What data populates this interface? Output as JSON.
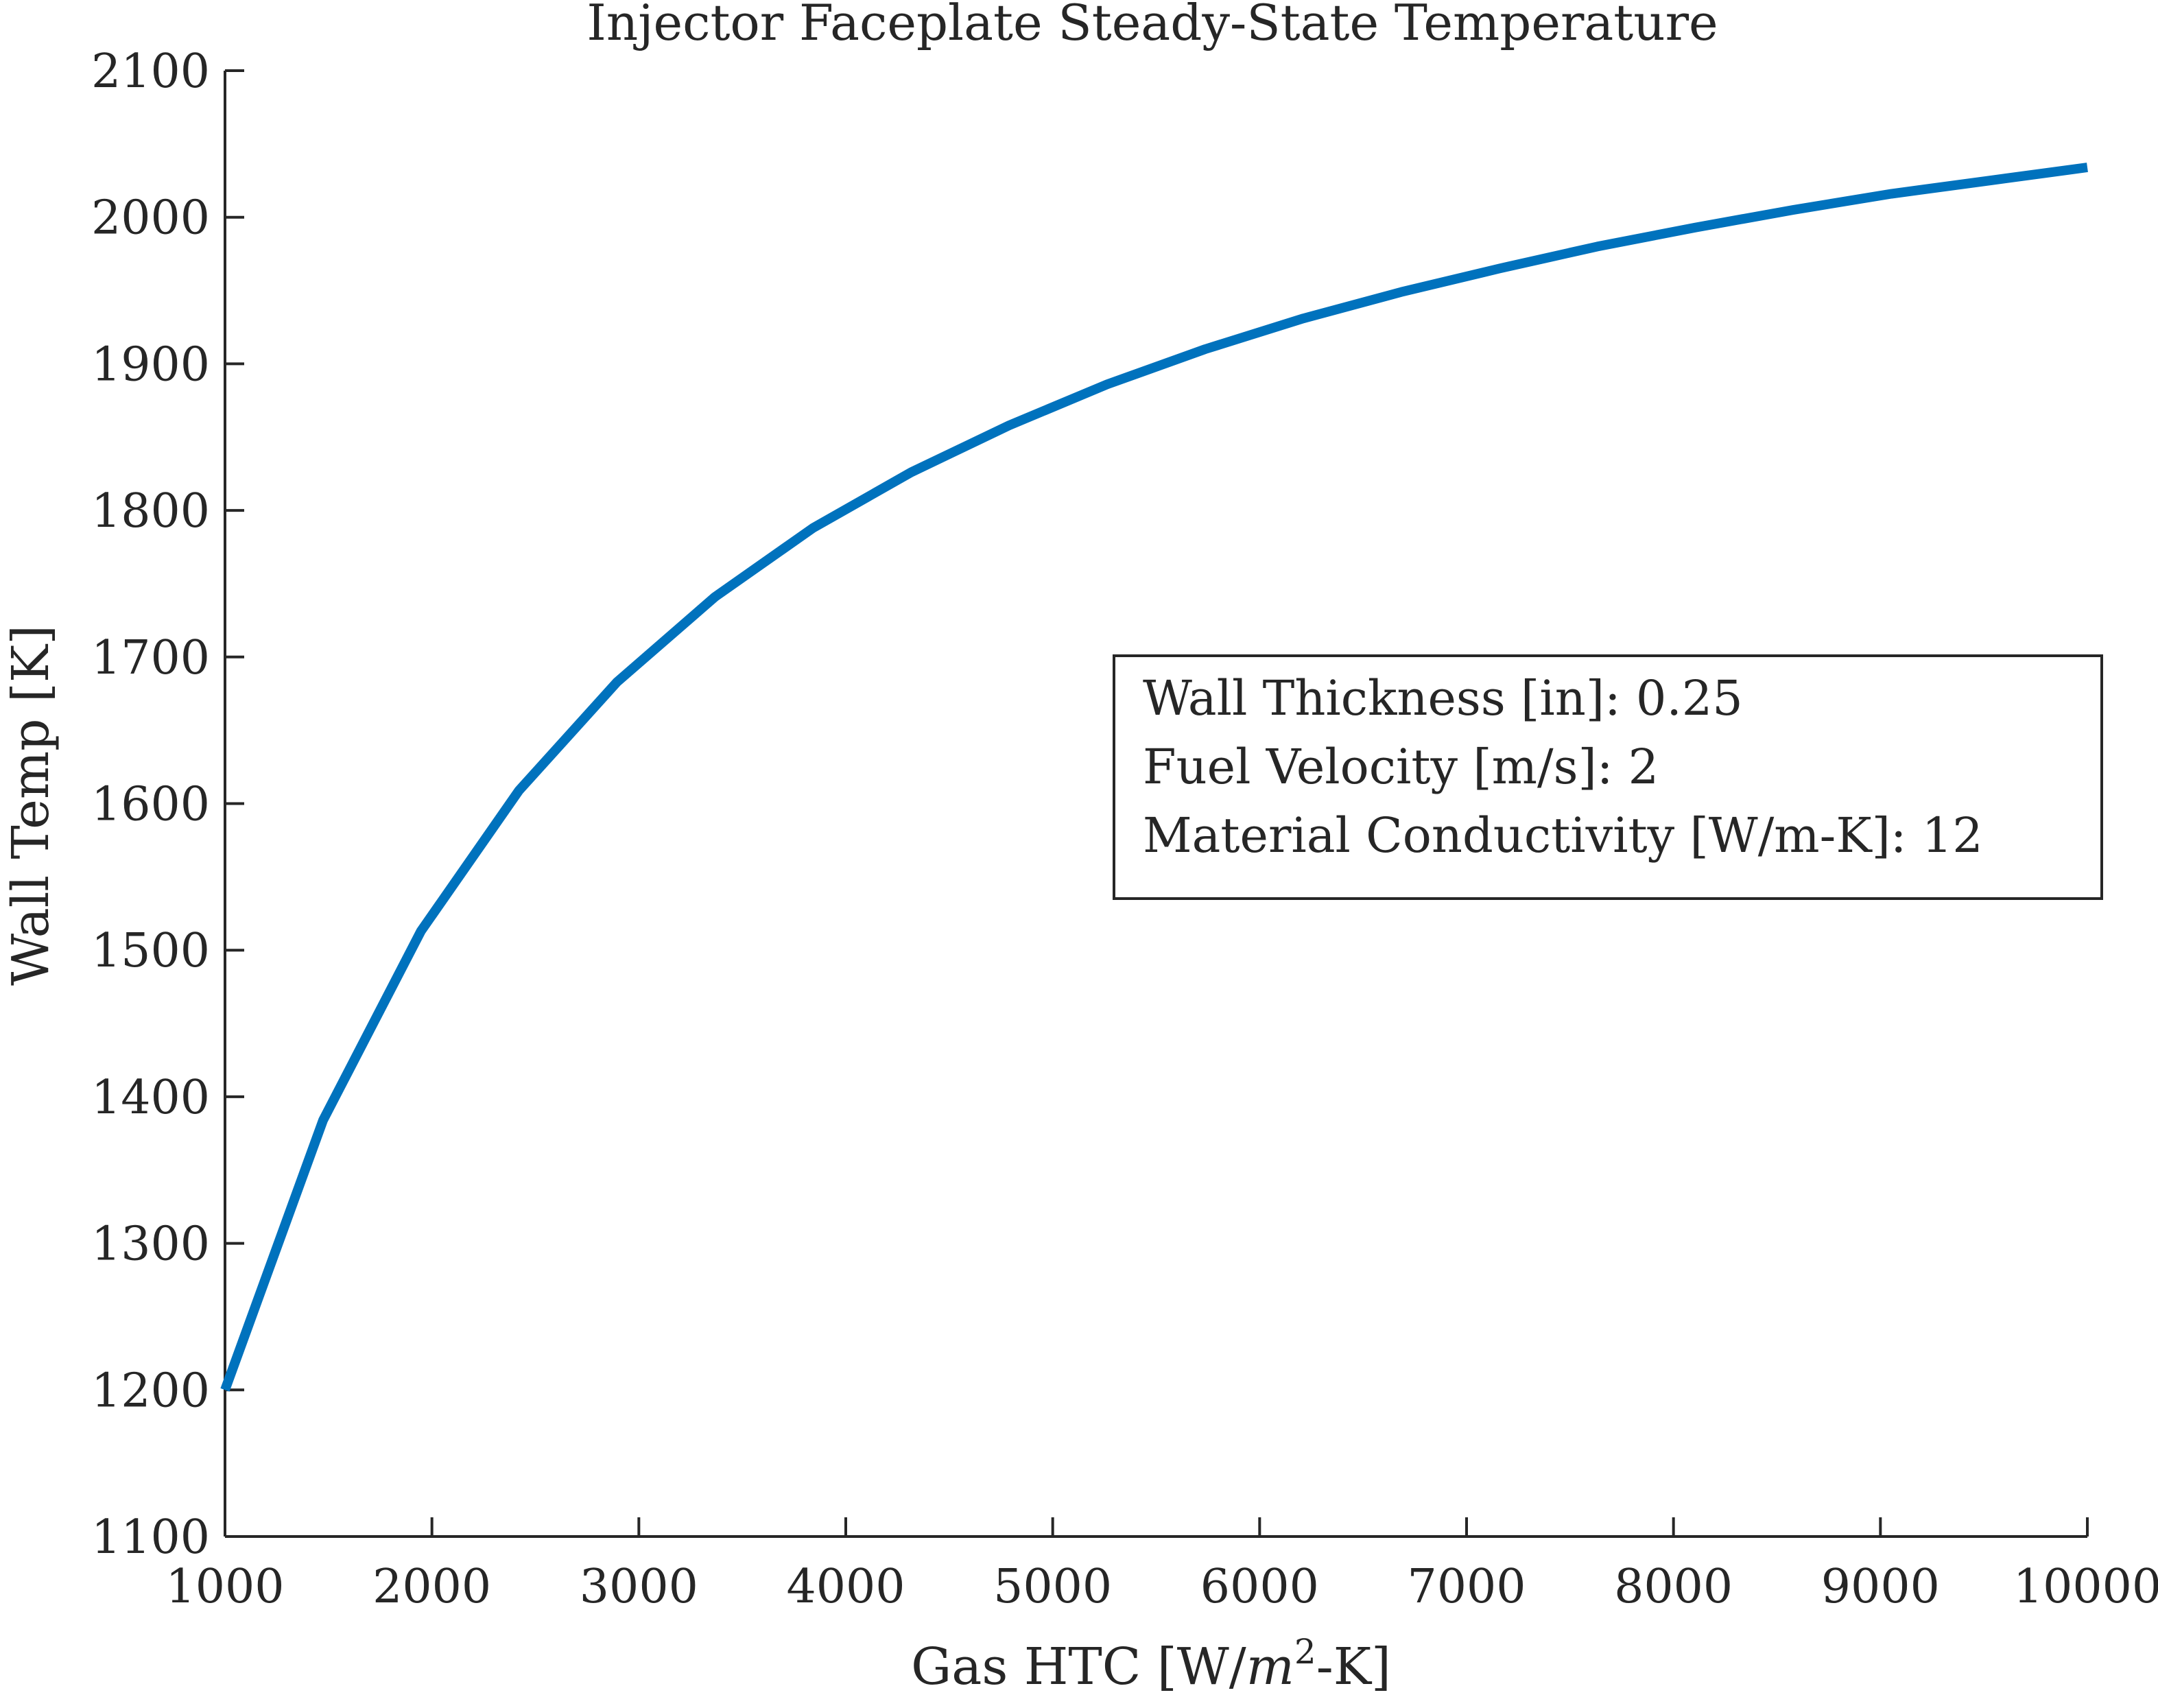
{
  "chart_data": {
    "type": "line",
    "title": "Injector Faceplate Steady-State Temperature",
    "xlabel": {
      "main": "Gas HTC [W/",
      "italic": "m",
      "superscript": "2",
      "tail": "-K]"
    },
    "ylabel": "Wall Temp [K]",
    "xlim": [
      1000,
      10000
    ],
    "ylim": [
      1100,
      2100
    ],
    "xticks": [
      1000,
      2000,
      3000,
      4000,
      5000,
      6000,
      7000,
      8000,
      9000,
      10000
    ],
    "yticks": [
      1100,
      1200,
      1300,
      1400,
      1500,
      1600,
      1700,
      1800,
      1900,
      2000,
      2100
    ],
    "grid": false,
    "series": [
      {
        "color": "#0072BD",
        "x": [
          1000,
          1474,
          1947,
          2421,
          2895,
          3368,
          3842,
          4316,
          4789,
          5263,
          5737,
          6211,
          6684,
          7158,
          7632,
          8105,
          8579,
          9053,
          9526,
          10000
        ],
        "y": [
          1200,
          1384,
          1513,
          1609,
          1683,
          1741,
          1788,
          1826,
          1858,
          1886,
          1910,
          1931,
          1949,
          1965,
          1980,
          1993,
          2005,
          2016,
          2025,
          2034
        ]
      }
    ],
    "annotation": {
      "placement": "right-middle",
      "lines": [
        "Wall Thickness [in]: 0.25",
        "Fuel Velocity [m/s]: 2",
        "Material Conductivity [W/m-K]: 12"
      ]
    }
  }
}
